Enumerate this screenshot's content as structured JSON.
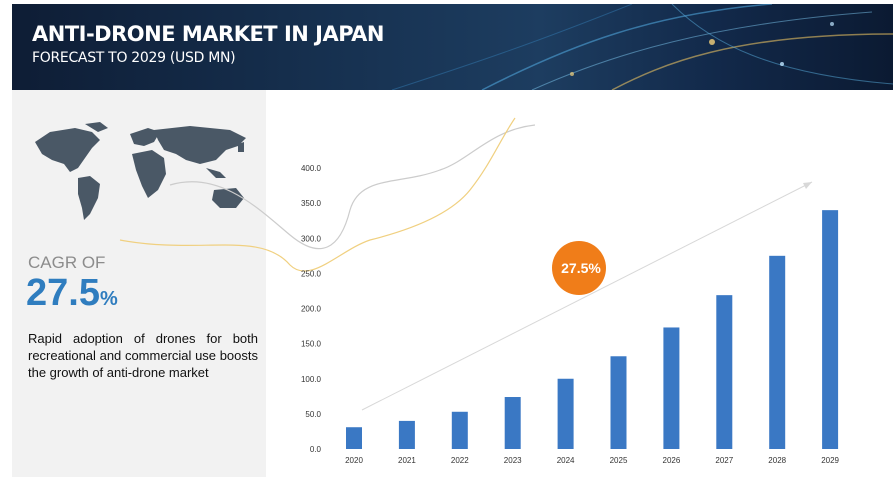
{
  "header": {
    "title": "ANTI-DRONE MARKET IN JAPAN",
    "subtitle": "FORECAST TO 2029 (USD MN)"
  },
  "left_panel": {
    "cagr_label": "CAGR OF",
    "cagr_value": "27.5",
    "cagr_unit": "%",
    "description": "Rapid adoption of drones for both recreational and commercial use boosts the growth of anti-drone market"
  },
  "colors": {
    "bar": "#3a78c4",
    "accent": "#f07d19",
    "cagr_text": "#2f7dbf",
    "banner": "#12294a"
  },
  "chart_data": {
    "type": "bar",
    "title": "",
    "xlabel": "",
    "ylabel": "",
    "categories": [
      "2020",
      "2021",
      "2022",
      "2023",
      "2024",
      "2025",
      "2026",
      "2027",
      "2028",
      "2029"
    ],
    "values": [
      31,
      40,
      53,
      74,
      100,
      132,
      173,
      219,
      275,
      340
    ],
    "ylim": [
      0,
      400
    ],
    "yticks": [
      "0.0",
      "50.0",
      "100.0",
      "150.0",
      "200.0",
      "250.0",
      "300.0",
      "350.0",
      "400.0"
    ],
    "grid": false,
    "annotation": "27.5%"
  }
}
